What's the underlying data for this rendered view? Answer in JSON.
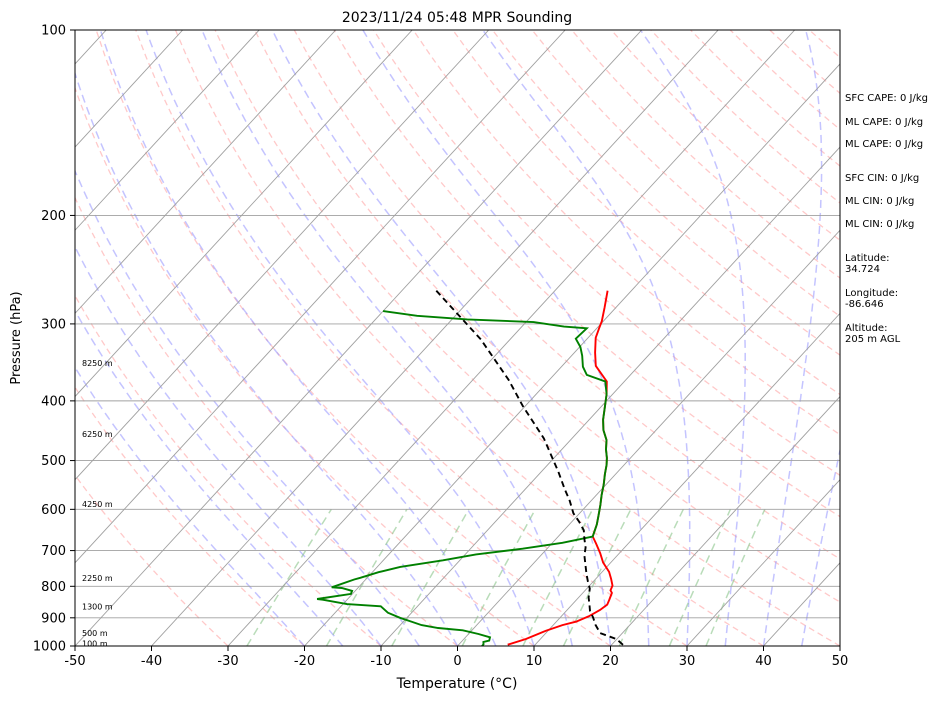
{
  "chart_data": {
    "type": "line",
    "title": "2023/11/24 05:48 MPR Sounding",
    "xlabel": "Temperature (°C)",
    "ylabel": "Pressure (hPa)",
    "xlim": [
      -50,
      50
    ],
    "ylim": [
      1000,
      100
    ],
    "y_scale": "log",
    "skew": "skew-T",
    "grid": true,
    "x_ticks": [
      "-50",
      "-40",
      "-30",
      "-20",
      "-10",
      "0",
      "10",
      "20",
      "30",
      "40",
      "50"
    ],
    "y_ticks": [
      "100",
      "200",
      "300",
      "400",
      "500",
      "600",
      "700",
      "800",
      "900",
      "1000"
    ],
    "height_labels": [
      {
        "pressure": 347,
        "label": "8250 m"
      },
      {
        "pressure": 453,
        "label": "6250 m"
      },
      {
        "pressure": 588,
        "label": "4250 m"
      },
      {
        "pressure": 775,
        "label": "2250 m"
      },
      {
        "pressure": 862,
        "label": "1300 m"
      },
      {
        "pressure": 953,
        "label": "500 m"
      },
      {
        "pressure": 991,
        "label": "100 m"
      }
    ],
    "series": [
      {
        "kind": "temperature",
        "color": "#ff0000",
        "points": [
          [
            -23.1,
            265
          ],
          [
            -21.5,
            282
          ],
          [
            -20.2,
            297
          ],
          [
            -19.7,
            305
          ],
          [
            -19.0,
            316
          ],
          [
            -17.3,
            334
          ],
          [
            -15.6,
            351
          ],
          [
            -12.3,
            372
          ],
          [
            -10.8,
            390
          ],
          [
            -9.5,
            409
          ],
          [
            -8.2,
            429
          ],
          [
            -6.9,
            446
          ],
          [
            -5.3,
            463
          ],
          [
            -4.2,
            480
          ],
          [
            -3.1,
            495
          ],
          [
            -2.3,
            508
          ],
          [
            -1.4,
            526
          ],
          [
            -0.3,
            547
          ],
          [
            0.7,
            569
          ],
          [
            1.7,
            590
          ],
          [
            2.7,
            613
          ],
          [
            3.6,
            635
          ],
          [
            4.5,
            664
          ],
          [
            5.8,
            682
          ],
          [
            7.5,
            707
          ],
          [
            9.0,
            732
          ],
          [
            10.9,
            758
          ],
          [
            12.0,
            778
          ],
          [
            13.0,
            798
          ],
          [
            13.3,
            812
          ],
          [
            13.8,
            820
          ],
          [
            14.3,
            842
          ],
          [
            14.6,
            857
          ],
          [
            14.3,
            874
          ],
          [
            13.6,
            895
          ],
          [
            12.6,
            913
          ],
          [
            11.2,
            925
          ],
          [
            9.7,
            945
          ],
          [
            8.1,
            974
          ],
          [
            6.4,
            995
          ]
        ]
      },
      {
        "kind": "dewpoint",
        "color": "#008000",
        "points": [
          [
            -50,
            286
          ],
          [
            -45,
            291
          ],
          [
            -38,
            295
          ],
          [
            -29.0,
            298
          ],
          [
            -24.5,
            303
          ],
          [
            -21.3,
            305
          ],
          [
            -21.5,
            317
          ],
          [
            -19.9,
            327
          ],
          [
            -18.6,
            338
          ],
          [
            -17.2,
            352
          ],
          [
            -15.7,
            363
          ],
          [
            -12.5,
            372
          ],
          [
            -10.8,
            390
          ],
          [
            -9.5,
            409
          ],
          [
            -8.2,
            429
          ],
          [
            -6.9,
            446
          ],
          [
            -5.3,
            463
          ],
          [
            -4.2,
            480
          ],
          [
            -3.1,
            495
          ],
          [
            -2.3,
            508
          ],
          [
            -1.4,
            526
          ],
          [
            -0.3,
            547
          ],
          [
            0.7,
            569
          ],
          [
            1.7,
            590
          ],
          [
            2.7,
            613
          ],
          [
            3.6,
            635
          ],
          [
            4.5,
            664
          ],
          [
            1.3,
            680
          ],
          [
            -3.2,
            695
          ],
          [
            -8.6,
            710
          ],
          [
            -12.2,
            726
          ],
          [
            -17.0,
            744
          ],
          [
            -19.2,
            759
          ],
          [
            -20.9,
            775
          ],
          [
            -21.5,
            780
          ],
          [
            -23.5,
            803
          ],
          [
            -22.1,
            805
          ],
          [
            -20.4,
            814
          ],
          [
            -20.2,
            823
          ],
          [
            -24.0,
            839
          ],
          [
            -23.2,
            841
          ],
          [
            -19.5,
            855
          ],
          [
            -14.8,
            862
          ],
          [
            -13.1,
            883
          ],
          [
            -10.9,
            900
          ],
          [
            -9.1,
            912
          ],
          [
            -7.2,
            925
          ],
          [
            -4.7,
            935
          ],
          [
            -1.2,
            943
          ],
          [
            1.3,
            956
          ],
          [
            3.2,
            968
          ],
          [
            3.5,
            980
          ],
          [
            2.9,
            985
          ],
          [
            3.2,
            994
          ],
          [
            3.2,
            1000
          ]
        ]
      },
      {
        "kind": "parcel",
        "color": "#000000",
        "dashed": true,
        "points": [
          [
            -45.5,
            265
          ],
          [
            -33.8,
            318
          ],
          [
            -25.3,
            370
          ],
          [
            -20.3,
            408
          ],
          [
            -13.7,
            460
          ],
          [
            -7.8,
            521
          ],
          [
            -4.8,
            557
          ],
          [
            -2.8,
            581
          ],
          [
            -0.8,
            609
          ],
          [
            1.0,
            629
          ],
          [
            2.6,
            649
          ],
          [
            3.7,
            670
          ],
          [
            4.9,
            692
          ],
          [
            5.7,
            713
          ],
          [
            6.8,
            735
          ],
          [
            8.1,
            762
          ],
          [
            9.3,
            786
          ],
          [
            10.4,
            807
          ],
          [
            11.3,
            834
          ],
          [
            12.2,
            855
          ],
          [
            13.1,
            877
          ],
          [
            14.3,
            899
          ],
          [
            15.5,
            924
          ],
          [
            17.1,
            953
          ],
          [
            20.0,
            975
          ],
          [
            21.8,
            1000
          ]
        ]
      }
    ],
    "background_lines": {
      "isotherm_color": "#a0a0a0",
      "dry_adiabat_color": "#ff9c9c",
      "moist_adiabat_color": "#9c9cff",
      "mixing_ratio_color": "#7fbf7f"
    }
  },
  "side_panel": {
    "sfc_cape": "SFC CAPE: 0 J/kg",
    "ml_cape_1": "ML CAPE: 0 J/kg",
    "ml_cape_2": "ML CAPE: 0 J/kg",
    "sfc_cin": "SFC CIN: 0 J/kg",
    "ml_cin_1": "ML CIN: 0 J/kg",
    "ml_cin_2": "ML CIN: 0 J/kg",
    "latitude_label": "Latitude:",
    "latitude_value": "34.724",
    "longitude_label": "Longitude:",
    "longitude_value": "-86.646",
    "altitude_label": "Altitude:",
    "altitude_value": "205 m AGL"
  }
}
